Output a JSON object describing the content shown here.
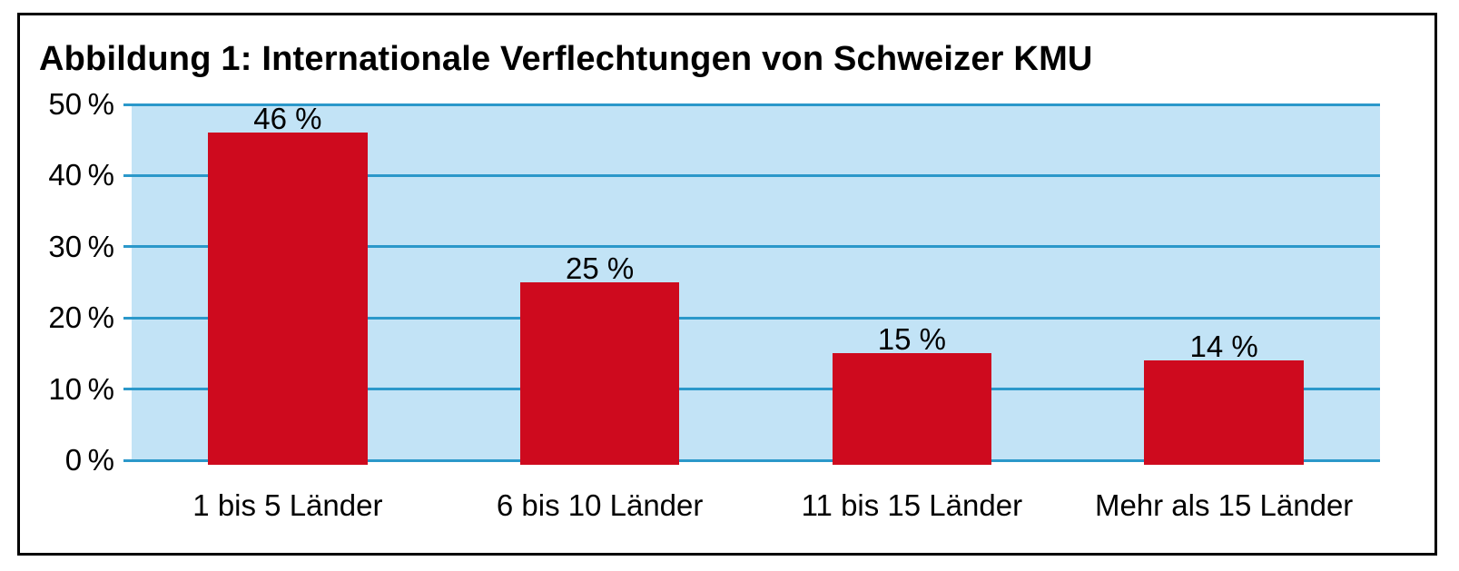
{
  "chart_data": {
    "type": "bar",
    "title": "Abbildung 1: Internationale Verflechtungen von Schweizer KMU",
    "categories": [
      "1 bis 5 Länder",
      "6 bis 10 Länder",
      "11 bis 15 Länder",
      "Mehr als 15 Länder"
    ],
    "values": [
      46,
      25,
      15,
      14
    ],
    "value_labels": [
      "46 %",
      "25 %",
      "15 %",
      "14 %"
    ],
    "xlabel": "",
    "ylabel": "",
    "ylim": [
      0,
      50
    ],
    "yticks": [
      0,
      10,
      20,
      30,
      40,
      50
    ],
    "ytick_labels": [
      "0 %",
      "10 %",
      "20 %",
      "30 %",
      "40 %",
      "50 %"
    ],
    "grid": true,
    "legend": false,
    "colors": {
      "bar": "#ce0a1e",
      "plot_background": "#c2e3f6",
      "gridline": "#2b98ca",
      "frame_border": "#000000",
      "text": "#000000",
      "page_background": "#ffffff"
    }
  }
}
